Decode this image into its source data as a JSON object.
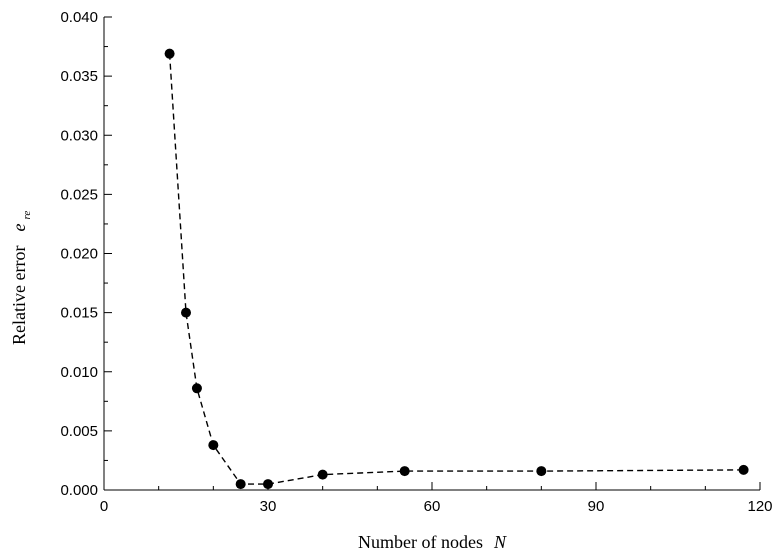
{
  "chart_data": {
    "type": "line",
    "title": "",
    "xlabel": "Number of nodes",
    "xlabel_var": "N",
    "ylabel": "Relative error",
    "ylabel_var": "e",
    "ylabel_var_sub": "re",
    "xlim": [
      0,
      120
    ],
    "ylim": [
      0,
      0.04
    ],
    "xticks": [
      0,
      30,
      60,
      90,
      120
    ],
    "xtick_labels": [
      "0",
      "30",
      "60",
      "90",
      "120"
    ],
    "yticks": [
      0,
      0.005,
      0.01,
      0.015,
      0.02,
      0.025,
      0.03,
      0.035,
      0.04
    ],
    "ytick_labels": [
      "0.000",
      "0.005",
      "0.010",
      "0.015",
      "0.020",
      "0.025",
      "0.030",
      "0.035",
      "0.040"
    ],
    "grid": false,
    "line_style": "dashed",
    "marker": "filled-circle",
    "color": "#000000",
    "series": [
      {
        "x": [
          12,
          15,
          17,
          20,
          25,
          30,
          40,
          55,
          80,
          117
        ],
        "y": [
          0.0369,
          0.015,
          0.0086,
          0.0038,
          0.0005,
          0.0005,
          0.0013,
          0.0016,
          0.0016,
          0.0017
        ]
      }
    ]
  }
}
